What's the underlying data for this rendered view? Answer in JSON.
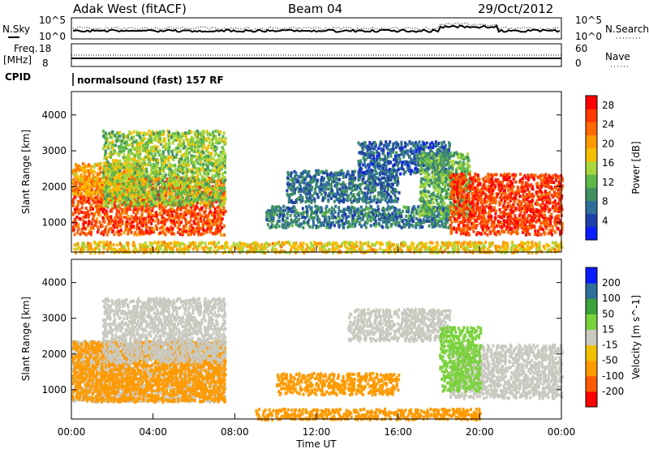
{
  "header": {
    "station": "Adak West (fitACF)",
    "beam": "Beam 04",
    "date": "29/Oct/2012"
  },
  "top_panels": {
    "nsky_label": "N.Sky",
    "nsky_ticks": [
      "10^5",
      "10^0"
    ],
    "nsearch_label": "N.Search",
    "nsearch_ticks": [
      "10^5",
      "10^0"
    ],
    "freq_label_1": "Freq.",
    "freq_label_2": "[MHz]",
    "freq_ticks": [
      "18",
      "8"
    ],
    "nave_label": "Nave",
    "nave_ticks": [
      "60",
      "0"
    ],
    "cpid_label": "CPID",
    "cpid_text": "normalsound (fast) 157 RF"
  },
  "colors": {
    "power_scale": [
      "#0a1cff",
      "#1f3fa8",
      "#2f6f9a",
      "#3f8f62",
      "#5fb84a",
      "#a8d63c",
      "#f5c000",
      "#ff9a00",
      "#ff6a00",
      "#ff3a00",
      "#ff0000"
    ],
    "velocity_scale": [
      "#ff0000",
      "#ff5a00",
      "#ff9a00",
      "#f0c000",
      "#c9c9c0",
      "#7ad23c",
      "#3aa23a",
      "#2f6f9a",
      "#0a1cff"
    ]
  },
  "chart_data": [
    {
      "type": "heatmap",
      "name": "power",
      "title": "",
      "xlabel": "",
      "ylabel": "Slant Range [km]",
      "xlim_hours": [
        0,
        24
      ],
      "ylim": [
        180,
        4650
      ],
      "y_ticks": [
        1000,
        2000,
        3000,
        4000
      ],
      "colorbar_label": "Power [dB]",
      "colorbar_ticks": [
        4,
        8,
        12,
        16,
        20,
        24,
        28
      ],
      "colorbar_range": [
        0,
        30
      ],
      "regions": [
        {
          "t0": 0.0,
          "t1": 7.5,
          "r0": 700,
          "r1": 2300,
          "v": 25
        },
        {
          "t0": 0.0,
          "t1": 3.5,
          "r0": 1800,
          "r1": 2700,
          "v": 20
        },
        {
          "t0": 1.5,
          "t1": 7.5,
          "r0": 1500,
          "r1": 3600,
          "v": 14
        },
        {
          "t0": 9.5,
          "t1": 18.5,
          "r0": 900,
          "r1": 1500,
          "v": 8
        },
        {
          "t0": 10.5,
          "t1": 16.0,
          "r0": 1600,
          "r1": 2500,
          "v": 7
        },
        {
          "t0": 14.0,
          "t1": 18.5,
          "r0": 2400,
          "r1": 3300,
          "v": 6
        },
        {
          "t0": 17.0,
          "t1": 19.5,
          "r0": 1200,
          "r1": 3000,
          "v": 12
        },
        {
          "t0": 18.5,
          "t1": 24.0,
          "r0": 700,
          "r1": 2400,
          "v": 26
        },
        {
          "t0": 0.0,
          "t1": 24.0,
          "r0": 200,
          "r1": 500,
          "v": 18
        }
      ]
    },
    {
      "type": "heatmap",
      "name": "velocity",
      "title": "",
      "xlabel": "Time UT",
      "ylabel": "Slant Range [km]",
      "xlim_hours": [
        0,
        24
      ],
      "ylim": [
        180,
        4650
      ],
      "y_ticks": [
        1000,
        2000,
        3000,
        4000
      ],
      "x_tick_labels": [
        "00:00",
        "04:00",
        "08:00",
        "12:00",
        "16:00",
        "20:00",
        "00:00"
      ],
      "colorbar_label": "Velocity [m s^-1]",
      "colorbar_ticks": [
        200,
        100,
        50,
        15,
        -15,
        -50,
        -100,
        -200
      ],
      "regions": [
        {
          "t0": 0.0,
          "t1": 7.5,
          "r0": 700,
          "r1": 2400,
          "v": 0
        },
        {
          "t0": 0.0,
          "t1": 7.5,
          "r0": 700,
          "r1": 2400,
          "v": -70
        },
        {
          "t0": 1.5,
          "t1": 7.5,
          "r0": 1800,
          "r1": 3600,
          "v": 0
        },
        {
          "t0": 10.0,
          "t1": 16.0,
          "r0": 900,
          "r1": 1500,
          "v": -60
        },
        {
          "t0": 13.5,
          "t1": 18.5,
          "r0": 2400,
          "r1": 3300,
          "v": 0
        },
        {
          "t0": 18.5,
          "t1": 24.0,
          "r0": 800,
          "r1": 2300,
          "v": 0
        },
        {
          "t0": 18.0,
          "t1": 20.0,
          "r0": 1000,
          "r1": 2800,
          "v": 40
        },
        {
          "t0": 9.0,
          "t1": 20.0,
          "r0": 200,
          "r1": 500,
          "v": -60
        }
      ]
    }
  ]
}
